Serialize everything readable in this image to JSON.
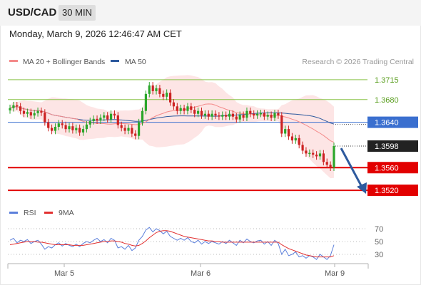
{
  "header": {
    "pair": "USD/CAD",
    "timeframe": "30 MIN"
  },
  "timestamp": "Monday, March 9, 2026 12:46:47 AM CET",
  "colors": {
    "ma20": "#f48a8a",
    "ma50": "#2e5a9e",
    "band": "#fde0e0",
    "bull": "#2aa62a",
    "bear": "#cc2222",
    "resistance": "#8bc34a",
    "current_line": "#3a6fcf",
    "support": "#e20000",
    "rsi": "#5b7fdb",
    "rsi_ma": "#e23030",
    "arrow": "#2e5a9e"
  },
  "chart_data": {
    "type": "candlestick",
    "legend": [
      {
        "label": "MA 20 + Bollinger Bands",
        "color_key": "ma20"
      },
      {
        "label": "MA 50",
        "color_key": "ma50"
      }
    ],
    "credit": "Research © 2026 Trading Central",
    "ylim": [
      1.35,
      1.3735
    ],
    "current_price": "1.3598",
    "levels": [
      {
        "label": "1.3715",
        "value": 1.3715,
        "kind": "resistance"
      },
      {
        "label": "1.3680",
        "value": 1.368,
        "kind": "resistance"
      },
      {
        "label": "1.3640",
        "value": 1.364,
        "kind": "pivot"
      },
      {
        "label": "1.3560",
        "value": 1.356,
        "kind": "support"
      },
      {
        "label": "1.3520",
        "value": 1.352,
        "kind": "support"
      }
    ],
    "x_ticks": [
      "Mar 5",
      "Mar 6",
      "Mar 9"
    ],
    "closes": [
      1.3665,
      1.367,
      1.3668,
      1.366,
      1.3655,
      1.3658,
      1.3652,
      1.3656,
      1.366,
      1.3657,
      1.364,
      1.363,
      1.3625,
      1.3632,
      1.3638,
      1.3635,
      1.3628,
      1.3633,
      1.3626,
      1.363,
      1.3622,
      1.3628,
      1.3636,
      1.3642,
      1.3646,
      1.3643,
      1.3648,
      1.3652,
      1.3645,
      1.3655,
      1.3652,
      1.3635,
      1.363,
      1.3625,
      1.363,
      1.362,
      1.3616,
      1.364,
      1.366,
      1.369,
      1.3705,
      1.3695,
      1.37,
      1.369,
      1.3685,
      1.3692,
      1.3675,
      1.3668,
      1.366,
      1.3665,
      1.366,
      1.3668,
      1.3662,
      1.3655,
      1.366,
      1.3652,
      1.3655,
      1.365,
      1.3655,
      1.3652,
      1.365,
      1.3653,
      1.365,
      1.3655,
      1.365,
      1.3645,
      1.3653,
      1.3648,
      1.366,
      1.3655,
      1.3652,
      1.3655,
      1.3656,
      1.365,
      1.3653,
      1.3648,
      1.3656,
      1.3652,
      1.362,
      1.3628,
      1.3615,
      1.3608,
      1.3612,
      1.36,
      1.359,
      1.3585,
      1.3586,
      1.3583,
      1.358,
      1.3585,
      1.357,
      1.3565,
      1.356,
      1.3598
    ],
    "rsi": {
      "legend": [
        {
          "label": "RSI",
          "color_key": "rsi"
        },
        {
          "label": "9MA",
          "color_key": "rsi_ma"
        }
      ],
      "ticks": [
        "70",
        "50",
        "30"
      ],
      "ylim": [
        15,
        80
      ],
      "values": [
        52,
        55,
        48,
        52,
        50,
        53,
        47,
        50,
        52,
        46,
        38,
        42,
        40,
        45,
        48,
        43,
        47,
        44,
        42,
        46,
        42,
        47,
        50,
        48,
        52,
        55,
        50,
        53,
        48,
        55,
        52,
        40,
        42,
        38,
        44,
        36,
        40,
        52,
        58,
        68,
        72,
        65,
        70,
        67,
        62,
        66,
        58,
        55,
        52,
        55,
        52,
        56,
        50,
        48,
        52,
        46,
        50,
        47,
        50,
        48,
        46,
        50,
        47,
        52,
        48,
        44,
        52,
        48,
        54,
        50,
        48,
        51,
        52,
        46,
        50,
        44,
        52,
        47,
        30,
        38,
        28,
        30,
        34,
        26,
        28,
        24,
        28,
        26,
        22,
        30,
        26,
        22,
        28,
        45
      ],
      "ma": [
        45,
        46,
        47,
        48,
        49,
        50,
        50,
        50,
        49,
        49,
        48,
        47,
        46,
        45,
        45,
        45,
        45,
        45,
        44,
        44,
        44,
        44,
        45,
        46,
        47,
        48,
        49,
        50,
        50,
        51,
        51,
        50,
        49,
        47,
        46,
        44,
        43,
        44,
        47,
        51,
        56,
        60,
        64,
        66,
        67,
        67,
        66,
        64,
        62,
        60,
        58,
        57,
        56,
        55,
        54,
        53,
        52,
        51,
        51,
        50,
        50,
        49,
        49,
        49,
        49,
        49,
        49,
        49,
        49,
        49,
        49,
        49,
        49,
        49,
        49,
        49,
        49,
        49,
        45,
        42,
        39,
        37,
        35,
        33,
        31,
        29,
        28,
        27,
        26,
        26,
        26,
        26,
        26,
        28
      ]
    }
  }
}
